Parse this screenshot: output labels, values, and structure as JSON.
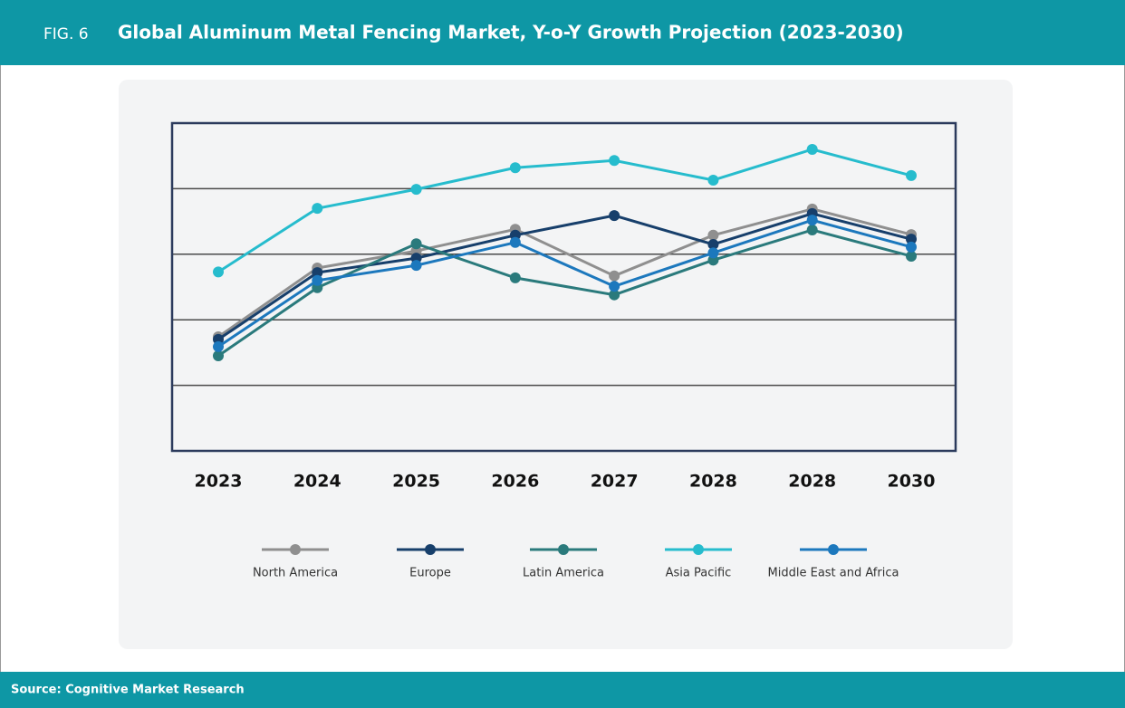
{
  "header": {
    "label": "FIG. 6",
    "title": "Global Aluminum Metal Fencing Market, Y-o-Y Growth Projection (2023-2030)"
  },
  "footer": {
    "source": "Source: Cognitive Market Research"
  },
  "chart_data": {
    "type": "line",
    "categories": [
      "2023",
      "2024",
      "2025",
      "2026",
      "2027",
      "2028",
      "2028",
      "2030"
    ],
    "series": [
      {
        "name": "North America",
        "color": "#8f8f8f",
        "values": [
          1.74,
          2.79,
          3.05,
          3.38,
          2.67,
          3.29,
          3.69,
          3.3
        ]
      },
      {
        "name": "Europe",
        "color": "#173f6b",
        "values": [
          1.7,
          2.72,
          2.94,
          3.29,
          3.59,
          3.15,
          3.62,
          3.23
        ]
      },
      {
        "name": "Latin America",
        "color": "#2a7a7c",
        "values": [
          1.45,
          2.49,
          3.16,
          2.64,
          2.38,
          2.91,
          3.37,
          2.97
        ]
      },
      {
        "name": "Asia Pacific",
        "color": "#26bccd",
        "values": [
          2.73,
          3.7,
          3.99,
          4.32,
          4.43,
          4.13,
          4.6,
          4.2
        ]
      },
      {
        "name": "Middle East and Africa",
        "color": "#1c78bd",
        "values": [
          1.59,
          2.6,
          2.83,
          3.18,
          2.51,
          3.02,
          3.52,
          3.11
        ]
      }
    ],
    "ylim": [
      0,
      5
    ],
    "yticks": [
      0,
      1,
      2,
      3,
      4,
      5
    ],
    "grid": true
  }
}
